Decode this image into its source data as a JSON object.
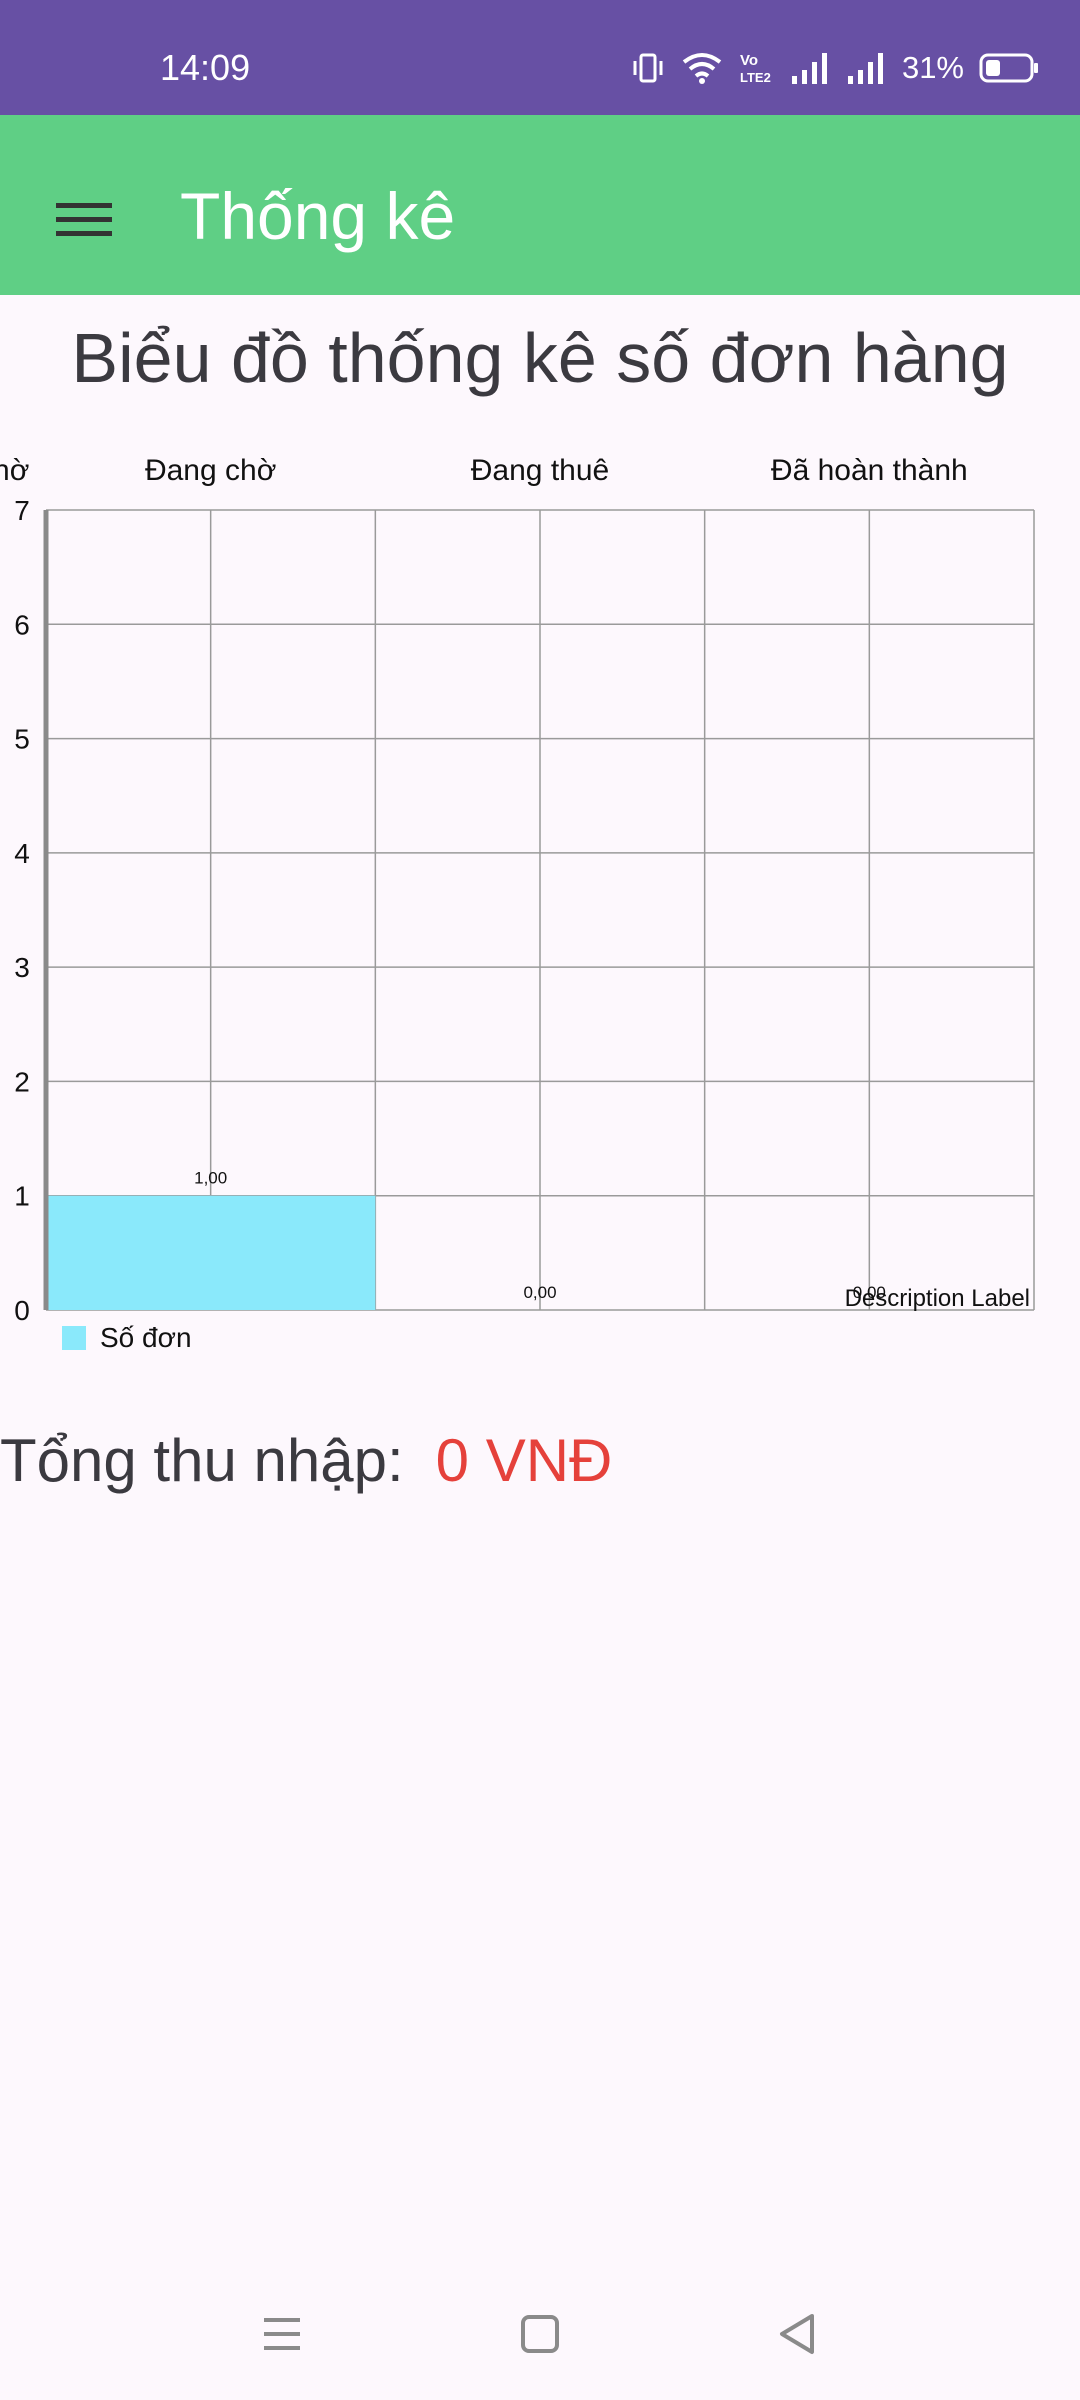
{
  "status_bar": {
    "time": "14:09",
    "battery": "31%",
    "icons": [
      "vibrate-icon",
      "wifi-icon",
      "volte-icon",
      "signal-icon",
      "signal-icon",
      "battery-icon"
    ]
  },
  "app_bar": {
    "title": "Thống kê",
    "menu_icon": "hamburger-menu-icon",
    "background": "#5fcf85"
  },
  "chart_heading": "Biểu đồ thống kê số đơn hàng",
  "chart_data": {
    "type": "bar",
    "categories": [
      "Đang chờ",
      "Đang thuê",
      "Đã hoàn thành"
    ],
    "x_tick_labels": [
      "Đang chờ",
      "Đang chờ",
      "Đang thuê",
      "Đã hoàn thành"
    ],
    "series": [
      {
        "name": "Số đơn",
        "values": [
          1,
          0,
          0
        ],
        "color": "#8ae9fb"
      }
    ],
    "value_labels": [
      "1,00",
      "0,00",
      "0,00"
    ],
    "yticks": [
      "0",
      "1",
      "2",
      "3",
      "4",
      "5",
      "6",
      "7"
    ],
    "ylim": [
      0,
      7
    ],
    "grid": true,
    "legend": "bottom-left",
    "description": "Description Label"
  },
  "income": {
    "label": "Tổng thu nhập:",
    "value": "0 VNĐ",
    "value_color": "#e5413b"
  },
  "nav_bar": {
    "icons": [
      "recent-apps-icon",
      "home-icon",
      "back-icon"
    ]
  }
}
